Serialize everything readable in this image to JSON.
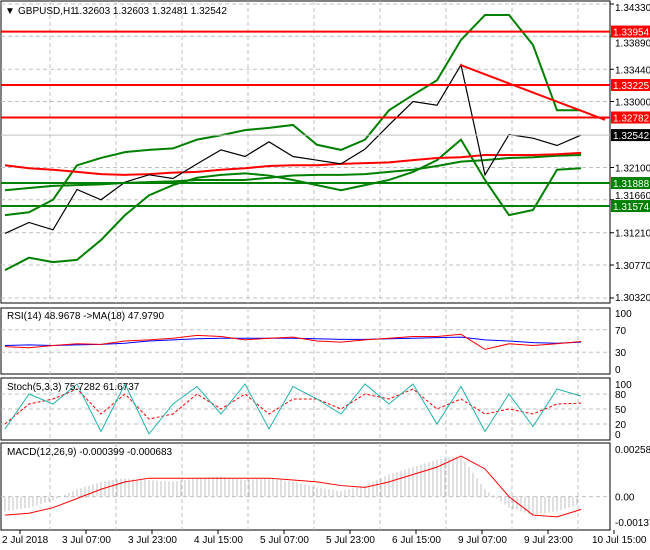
{
  "header": {
    "symbol": "GBPUSD,H1",
    "ohlc": "1.32603 1.32603 1.32481 1.32542"
  },
  "colors": {
    "resistance": "#ff0000",
    "support": "#008000",
    "current": "#000000",
    "rsi": "#ff0000",
    "rsi_ma": "#0000ff",
    "stoch_main": "#20b2aa",
    "stoch_signal": "#ff0000",
    "macd_hist": "#c0c0c0",
    "macd_signal": "#ff0000"
  },
  "chart_data": [
    {
      "type": "line",
      "name_label": "GBPUSD,H1",
      "ylim": [
        1.3032,
        1.3433
      ],
      "y_ticks": [
        "1.34330",
        "1.33890",
        "1.33440",
        "1.33000",
        "1.32100",
        "1.31660",
        "1.31210",
        "1.30770",
        "1.30320"
      ],
      "y_tick_values": [
        1.3433,
        1.3389,
        1.3344,
        1.33,
        1.321,
        1.3166,
        1.3121,
        1.3077,
        1.3032
      ],
      "x_labels": [
        "2 Jul 2018",
        "3 Jul 07:00",
        "3 Jul 23:00",
        "4 Jul 15:00",
        "5 Jul 07:00",
        "5 Jul 23:00",
        "6 Jul 15:00",
        "9 Jul 07:00",
        "9 Jul 23:00",
        "10 Jul 15:00"
      ],
      "close": [
        1.312,
        1.3135,
        1.3125,
        1.318,
        1.3166,
        1.319,
        1.32,
        1.3195,
        1.3215,
        1.3234,
        1.3225,
        1.3245,
        1.3225,
        1.322,
        1.3215,
        1.3235,
        1.3268,
        1.33,
        1.3295,
        1.335,
        1.32,
        1.3255,
        1.325,
        1.324,
        1.32542
      ],
      "bb_upper": [
        1.3145,
        1.3149,
        1.3166,
        1.3213,
        1.3223,
        1.3231,
        1.3234,
        1.3236,
        1.3248,
        1.3254,
        1.3261,
        1.3264,
        1.3268,
        1.3241,
        1.3234,
        1.3248,
        1.3288,
        1.3309,
        1.3329,
        1.3384,
        1.3418,
        1.3418,
        1.3377,
        1.3288,
        1.3288
      ],
      "bb_lower": [
        1.307,
        1.3087,
        1.3081,
        1.3084,
        1.3111,
        1.3145,
        1.3172,
        1.3186,
        1.3196,
        1.32,
        1.3202,
        1.3199,
        1.3193,
        1.3186,
        1.3179,
        1.3186,
        1.3193,
        1.3204,
        1.322,
        1.3248,
        1.3193,
        1.3145,
        1.3152,
        1.3207,
        1.3209
      ],
      "ma_red": [
        1.3213,
        1.3209,
        1.3207,
        1.3204,
        1.3201,
        1.32,
        1.3201,
        1.3203,
        1.3204,
        1.3207,
        1.3209,
        1.3212,
        1.3213,
        1.3213,
        1.3215,
        1.3216,
        1.3217,
        1.322,
        1.3223,
        1.3224,
        1.3227,
        1.3227,
        1.3227,
        1.3228,
        1.323
      ],
      "ma_green": [
        1.3179,
        1.3182,
        1.3185,
        1.3186,
        1.3187,
        1.3189,
        1.319,
        1.3191,
        1.3193,
        1.3193,
        1.3193,
        1.3196,
        1.3199,
        1.32,
        1.32,
        1.3201,
        1.3204,
        1.3207,
        1.3212,
        1.3218,
        1.322,
        1.3223,
        1.3224,
        1.3226,
        1.3227
      ],
      "levels": [
        {
          "label": "1.33954",
          "value": 1.33954,
          "kind": "resistance"
        },
        {
          "label": "1.33225",
          "value": 1.33225,
          "kind": "resistance"
        },
        {
          "label": "1.32782",
          "value": 1.32782,
          "kind": "resistance"
        },
        {
          "label": "1.31888",
          "value": 1.31888,
          "kind": "support"
        },
        {
          "label": "1.31574",
          "value": 1.31574,
          "kind": "support"
        }
      ],
      "current": {
        "label": "1.32542",
        "value": 1.32542
      },
      "trendline": [
        1.335,
        1.3275
      ]
    },
    {
      "type": "line",
      "title": "RSI(14) 48.9678  ->MA(18) 47.9790",
      "ylim": [
        0,
        100
      ],
      "y_ticks": [
        "100",
        "70",
        "30",
        "0"
      ],
      "rsi": [
        40,
        38,
        42,
        45,
        44,
        50,
        52,
        55,
        60,
        58,
        52,
        55,
        57,
        50,
        48,
        52,
        55,
        58,
        58,
        62,
        35,
        45,
        42,
        45,
        49
      ],
      "ma": [
        42,
        43,
        42,
        43,
        44,
        46,
        50,
        52,
        54,
        55,
        55,
        55,
        55,
        54,
        53,
        53,
        54,
        55,
        56,
        57,
        52,
        50,
        47,
        46,
        48
      ]
    },
    {
      "type": "line",
      "title": "Stoch(5,3,3) 75.7282 61.6737",
      "ylim": [
        0,
        100
      ],
      "y_ticks": [
        "100",
        "80",
        "50",
        "20",
        "0"
      ],
      "main": [
        10,
        80,
        60,
        100,
        5,
        100,
        0,
        60,
        95,
        40,
        100,
        10,
        95,
        70,
        40,
        100,
        60,
        100,
        20,
        95,
        5,
        80,
        15,
        90,
        75.7
      ],
      "signal": [
        20,
        60,
        70,
        90,
        40,
        80,
        30,
        40,
        80,
        50,
        80,
        40,
        70,
        70,
        50,
        80,
        70,
        90,
        50,
        70,
        40,
        50,
        40,
        60,
        61.7
      ]
    },
    {
      "type": "bar",
      "title": "MACD(12,26,9) -0.000399 -0.000683",
      "ylim": [
        -0.001376,
        0.002583
      ],
      "y_ticks": [
        "0.002583",
        "0.00",
        "-0.001376"
      ],
      "hist": [
        -0.0008,
        -0.0006,
        -0.0002,
        0.0004,
        0.0008,
        0.001,
        0.0009,
        0.0008,
        0.001,
        0.0011,
        0.0009,
        0.001,
        0.0008,
        0.0005,
        0.0003,
        0.0006,
        0.0012,
        0.0016,
        0.002,
        0.0022,
        0.0004,
        -0.0006,
        -0.001,
        -0.0008,
        -0.0004
      ],
      "signal": [
        -0.001,
        -0.0009,
        -0.0006,
        -0.0001,
        0.0004,
        0.0008,
        0.001,
        0.001,
        0.001,
        0.001,
        0.001,
        0.001,
        0.0009,
        0.0008,
        0.0006,
        0.0005,
        0.0008,
        0.0012,
        0.0016,
        0.0022,
        0.0015,
        0.0,
        -0.001,
        -0.0011,
        -0.0007
      ]
    }
  ]
}
